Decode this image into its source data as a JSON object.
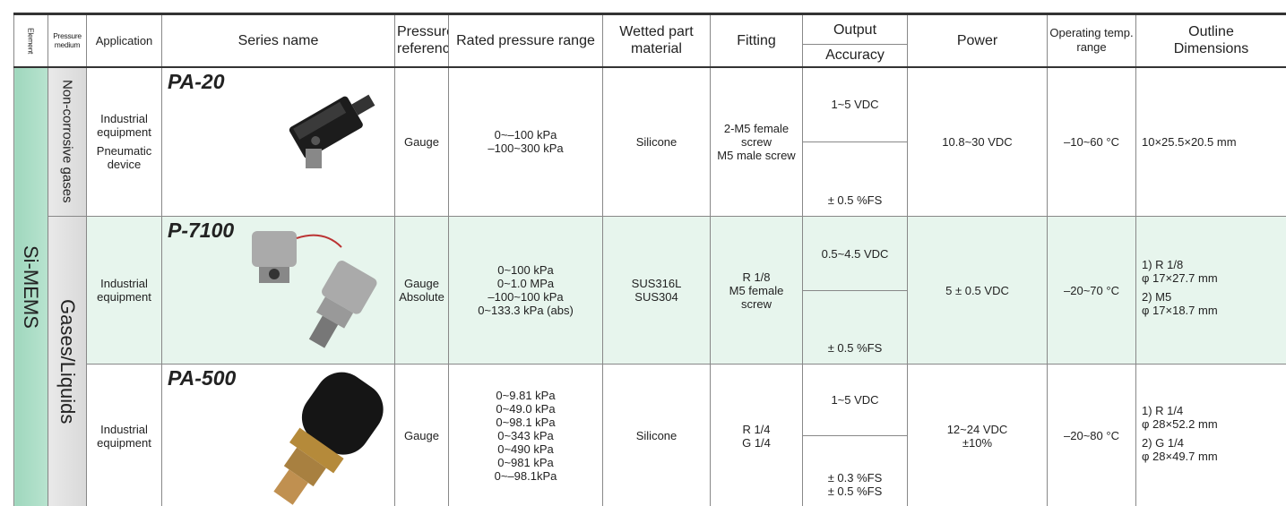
{
  "columns": {
    "element": "Element",
    "pressure_medium": "Pressure medium",
    "application": "Application",
    "series_name": "Series name",
    "pressure_reference": "Pressure reference",
    "rated_pressure_range": "Rated pressure range",
    "wetted_part_material": "Wetted part material",
    "fitting": "Fitting",
    "output": "Output",
    "accuracy": "Accuracy",
    "power": "Power",
    "operating_temp_range": "Operating temp. range",
    "outline_dimensions": "Outline Dimensions"
  },
  "element": "Si-MEMS",
  "media": [
    "Non-corrosive gases",
    "Gases/Liquids"
  ],
  "rows": [
    {
      "application": [
        "Industrial equipment",
        "Pneumatic device"
      ],
      "series_name": "PA-20",
      "pressure_reference": [
        "Gauge"
      ],
      "rated_pressure_range": [
        "0~–100 kPa",
        "–100~300 kPa"
      ],
      "wetted_part_material": [
        "Silicone"
      ],
      "fitting": [
        "2-M5 female screw",
        "M5 male screw"
      ],
      "output": [
        "1~5 VDC"
      ],
      "accuracy": [
        "± 0.5 %FS"
      ],
      "power": [
        "10.8~30 VDC"
      ],
      "operating_temp_range": [
        "–10~60 °C"
      ],
      "outline_dimensions": [
        "10×25.5×20.5 mm"
      ]
    },
    {
      "application": [
        "Industrial equipment"
      ],
      "series_name": "P-7100",
      "pressure_reference": [
        "Gauge",
        "Absolute"
      ],
      "rated_pressure_range": [
        "0~100 kPa",
        "0~1.0 MPa",
        "–100~100 kPa",
        "0~133.3 kPa (abs)"
      ],
      "wetted_part_material": [
        "SUS316L",
        "SUS304"
      ],
      "fitting": [
        "R 1/8",
        "M5 female screw"
      ],
      "output": [
        "0.5~4.5 VDC"
      ],
      "accuracy": [
        "± 0.5 %FS"
      ],
      "power": [
        "5 ± 0.5 VDC"
      ],
      "operating_temp_range": [
        "–20~70 °C"
      ],
      "outline_dimensions": [
        "1) R 1/8",
        "φ 17×27.7 mm",
        "2) M5",
        "φ 17×18.7 mm"
      ]
    },
    {
      "application": [
        "Industrial equipment"
      ],
      "series_name": "PA-500",
      "pressure_reference": [
        "Gauge"
      ],
      "rated_pressure_range": [
        "0~9.81 kPa",
        "0~49.0 kPa",
        "0~98.1 kPa",
        "0~343 kPa",
        "0~490 kPa",
        "0~981 kPa",
        "0~–98.1kPa"
      ],
      "wetted_part_material": [
        "Silicone"
      ],
      "fitting": [
        "R 1/4",
        "G 1/4"
      ],
      "output": [
        "1~5 VDC"
      ],
      "accuracy": [
        "± 0.3 %FS",
        "± 0.5 %FS"
      ],
      "power": [
        "12~24 VDC",
        "±10%"
      ],
      "operating_temp_range": [
        "–20~80 °C"
      ],
      "outline_dimensions": [
        "1) R 1/4",
        "φ 28×52.2 mm",
        "2) G 1/4",
        "φ 28×49.7 mm"
      ]
    }
  ]
}
